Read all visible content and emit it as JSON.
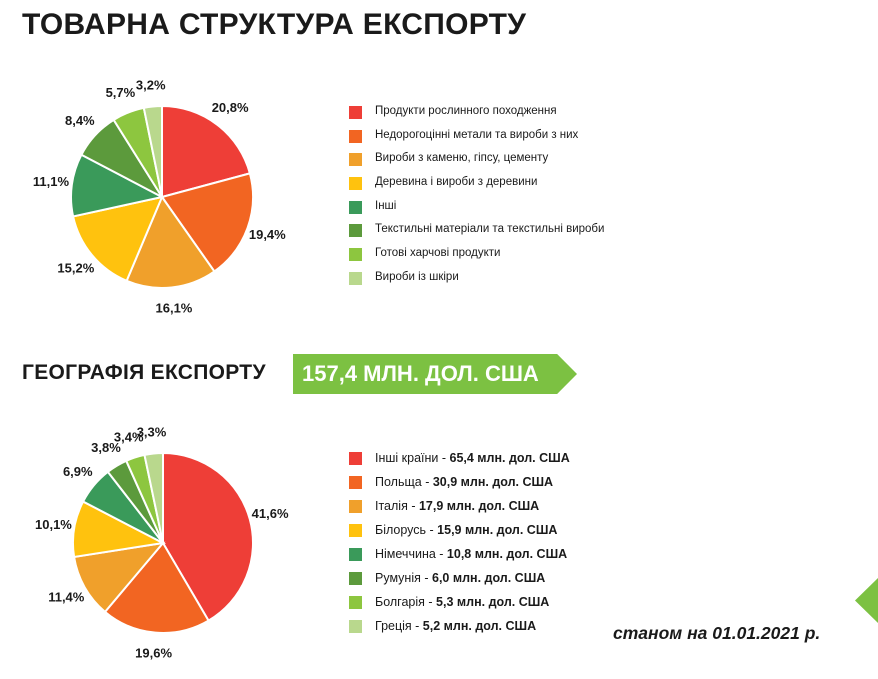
{
  "export_structure": {
    "title": "ТОВАРНА СТРУКТУРА ЕКСПОРТУ"
  },
  "geography": {
    "title": "ГЕОГРАФІЯ ЕКСПОРТУ",
    "total_label": "157,4 МЛН. ДОЛ. США"
  },
  "footnote": "станом на 01.01.2021 р.",
  "chart_data": [
    {
      "type": "pie",
      "title": "ТОВАРНА СТРУКТУРА ЕКСПОРТУ",
      "categories": [
        "Продукти рослинного походження",
        "Недорогоцінні метали та вироби з них",
        "Вироби з каменю, гіпсу, цементу",
        "Деревина і вироби з деревини",
        "Інші",
        "Текстильні матеріали та текстильні вироби",
        "Готові харчові продукти",
        "Вироби із шкіри"
      ],
      "values": [
        20.8,
        19.4,
        16.1,
        15.2,
        11.1,
        8.4,
        5.7,
        3.2
      ],
      "value_labels": [
        "20,8%",
        "19,4%",
        "16,1%",
        "15,2%",
        "11,1%",
        "8,4%",
        "5,7%",
        "3,2%"
      ],
      "colors": [
        "#ee3e37",
        "#f26522",
        "#f0a02b",
        "#ffc20e",
        "#3a9a5a",
        "#5c9a3c",
        "#8dc63f",
        "#b9d88d"
      ],
      "legend_position": "right"
    },
    {
      "type": "pie",
      "title": "ГЕОГРАФІЯ ЕКСПОРТУ",
      "categories": [
        "Інші країни",
        "Польща",
        "Італія",
        "Білорусь",
        "Німеччина",
        "Румунія",
        "Болгарія",
        "Греція"
      ],
      "legend_values": [
        "65,4 млн. дол. США",
        "30,9 млн. дол. США",
        "17,9 млн. дол. США",
        "15,9 млн. дол. США",
        "10,8 млн. дол. США",
        "6,0 млн. дол. США",
        "5,3 млн. дол. США",
        "5,2 млн. дол. США"
      ],
      "values": [
        41.6,
        19.6,
        11.4,
        10.1,
        6.9,
        3.8,
        3.4,
        3.3
      ],
      "value_labels": [
        "41,6%",
        "19,6%",
        "11,4%",
        "10,1%",
        "6,9%",
        "3,8%",
        "3,4%",
        "3,3%"
      ],
      "colors": [
        "#ee3e37",
        "#f26522",
        "#f0a02b",
        "#ffc20e",
        "#3a9a5a",
        "#5c9a3c",
        "#8dc63f",
        "#b9d88d"
      ],
      "legend_position": "right"
    }
  ]
}
